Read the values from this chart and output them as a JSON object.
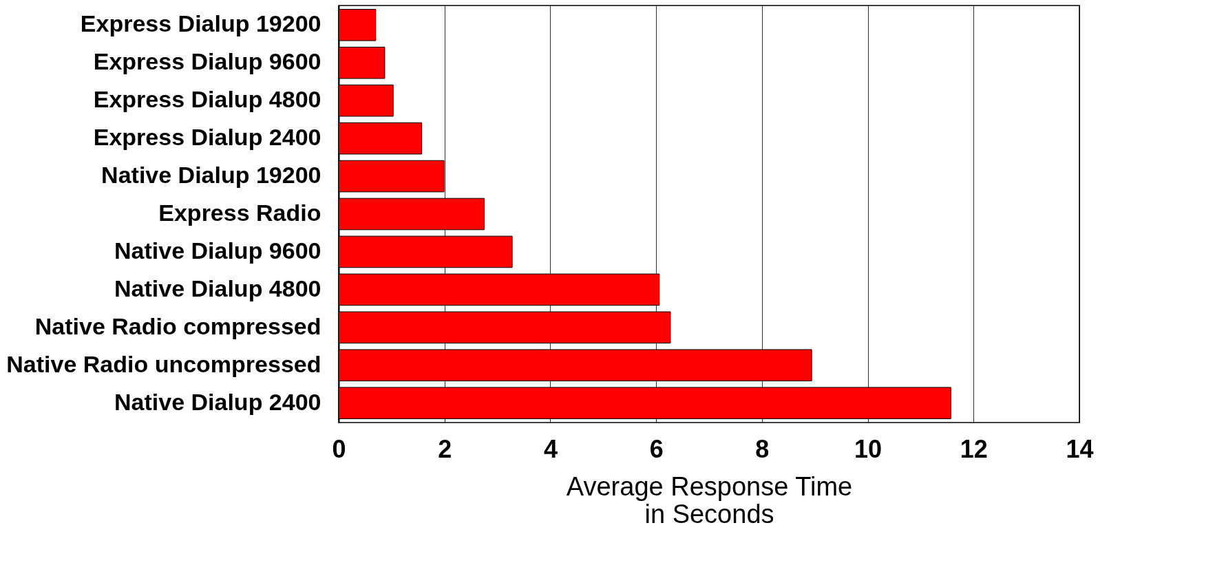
{
  "chart_data": {
    "type": "bar",
    "orientation": "horizontal",
    "xlabel": "Average Response Time\nin Seconds",
    "categories": [
      "Express Dialup 19200",
      "Express Dialup 9600",
      "Express Dialup 4800",
      "Express Dialup 2400",
      "Native Dialup 19200",
      "Express Radio",
      "Native Dialup 9600",
      "Native Dialup 4800",
      "Native Radio compressed",
      "Native Radio uncompressed",
      "Native Dialup 2400"
    ],
    "values": [
      0.7,
      0.87,
      1.03,
      1.57,
      1.99,
      2.75,
      3.28,
      6.06,
      6.27,
      8.94,
      11.57
    ],
    "color": "#ff0000",
    "xlim": [
      0,
      14
    ],
    "xticks": [
      0,
      2,
      4,
      6,
      8,
      10,
      12,
      14
    ],
    "grid": "x"
  }
}
